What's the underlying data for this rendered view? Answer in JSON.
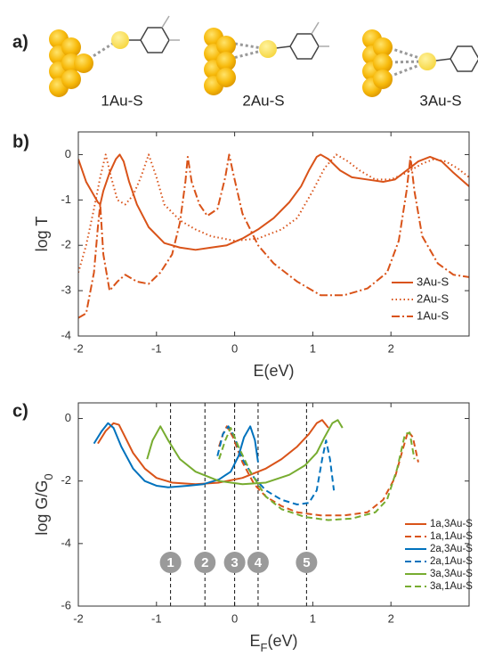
{
  "panel_a": {
    "label": "a)",
    "structures": [
      "1Au-S",
      "2Au-S",
      "3Au-S"
    ]
  },
  "chart_data": [
    {
      "type": "line",
      "panel_label": "b)",
      "xlabel": "E(eV)",
      "ylabel": "log T",
      "xlim": [
        -2,
        3
      ],
      "ylim": [
        -4,
        0.5
      ],
      "xticks": [
        -2,
        -1,
        0,
        1,
        2
      ],
      "yticks": [
        -4,
        -3,
        -2,
        -1,
        0
      ],
      "legend": "lower right",
      "series": [
        {
          "name": "3Au-S",
          "color": "#d95319",
          "style": "solid",
          "x": [
            -2,
            -1.9,
            -1.8,
            -1.75,
            -1.72,
            -1.68,
            -1.6,
            -1.52,
            -1.47,
            -1.42,
            -1.35,
            -1.25,
            -1.1,
            -0.9,
            -0.7,
            -0.5,
            -0.3,
            -0.1,
            0.1,
            0.3,
            0.5,
            0.7,
            0.85,
            0.95,
            1.05,
            1.1,
            1.2,
            1.35,
            1.5,
            1.7,
            1.9,
            2.05,
            2.2,
            2.35,
            2.5,
            2.65,
            2.8,
            3
          ],
          "values": [
            -0.1,
            -0.6,
            -0.9,
            -1.05,
            -1.1,
            -0.8,
            -0.4,
            -0.1,
            0,
            -0.15,
            -0.6,
            -1.1,
            -1.6,
            -1.95,
            -2.05,
            -2.1,
            -2.05,
            -2.0,
            -1.85,
            -1.65,
            -1.4,
            -1.05,
            -0.7,
            -0.35,
            -0.05,
            0,
            -0.1,
            -0.35,
            -0.5,
            -0.55,
            -0.6,
            -0.55,
            -0.35,
            -0.15,
            -0.05,
            -0.15,
            -0.4,
            -0.7
          ]
        },
        {
          "name": "2Au-S",
          "color": "#d95319",
          "style": "dotted",
          "x": [
            -2,
            -1.9,
            -1.8,
            -1.72,
            -1.65,
            -1.58,
            -1.5,
            -1.4,
            -1.3,
            -1.2,
            -1.1,
            -1.0,
            -0.9,
            -0.7,
            -0.5,
            -0.3,
            0,
            0.3,
            0.6,
            0.8,
            1.0,
            1.15,
            1.3,
            1.45,
            1.6,
            1.8,
            2.0,
            2.2,
            2.4,
            2.55,
            2.7,
            2.85,
            3
          ],
          "values": [
            -2.6,
            -2.0,
            -1.2,
            -0.5,
            0,
            -0.5,
            -1.0,
            -1.1,
            -0.9,
            -0.5,
            0,
            -0.5,
            -1.1,
            -1.45,
            -1.65,
            -1.8,
            -1.9,
            -1.85,
            -1.65,
            -1.4,
            -0.8,
            -0.3,
            0,
            -0.15,
            -0.35,
            -0.55,
            -0.55,
            -0.4,
            -0.2,
            -0.1,
            -0.15,
            -0.3,
            -0.5
          ]
        },
        {
          "name": "1Au-S",
          "color": "#d95319",
          "style": "dashdot",
          "x": [
            -2,
            -1.9,
            -1.8,
            -1.75,
            -1.72,
            -1.68,
            -1.6,
            -1.5,
            -1.4,
            -1.25,
            -1.1,
            -0.95,
            -0.8,
            -0.7,
            -0.63,
            -0.6,
            -0.55,
            -0.45,
            -0.35,
            -0.22,
            -0.12,
            -0.07,
            -0.02,
            0.1,
            0.3,
            0.5,
            0.8,
            1.1,
            1.4,
            1.7,
            1.95,
            2.1,
            2.2,
            2.25,
            2.3,
            2.4,
            2.6,
            2.8,
            3
          ],
          "values": [
            -3.6,
            -3.5,
            -2.6,
            -1.6,
            -1.1,
            -2.2,
            -3.0,
            -2.8,
            -2.65,
            -2.8,
            -2.85,
            -2.6,
            -2.2,
            -1.5,
            -0.6,
            -0.05,
            -0.6,
            -1.1,
            -1.35,
            -1.2,
            -0.5,
            0,
            -0.4,
            -1.3,
            -2.0,
            -2.4,
            -2.8,
            -3.1,
            -3.1,
            -2.95,
            -2.6,
            -1.9,
            -0.8,
            -0.05,
            -0.8,
            -1.8,
            -2.4,
            -2.65,
            -2.7
          ]
        }
      ]
    },
    {
      "type": "line",
      "panel_label": "c)",
      "xlabel": {
        "text": "E",
        "subscript": "F",
        "suffix": "(eV)"
      },
      "ylabel": {
        "text": "log G/G",
        "subscript": "0"
      },
      "xlim": [
        -2,
        3
      ],
      "ylim": [
        -6,
        0.5
      ],
      "xticks": [
        -2,
        -1,
        0,
        1,
        2
      ],
      "yticks": [
        -6,
        -4,
        -2,
        0
      ],
      "legend": "lower right",
      "markers": [
        {
          "x": -0.82,
          "label": "1"
        },
        {
          "x": -0.38,
          "label": "2"
        },
        {
          "x": 0,
          "label": "3"
        },
        {
          "x": 0.3,
          "label": "4"
        },
        {
          "x": 0.92,
          "label": "5"
        }
      ],
      "series": [
        {
          "name": "1a,3Au-S",
          "color": "#d95319",
          "style": "solid",
          "x": [
            -1.75,
            -1.65,
            -1.55,
            -1.48,
            -1.4,
            -1.3,
            -1.15,
            -1.0,
            -0.8,
            -0.5,
            -0.2,
            0.1,
            0.4,
            0.6,
            0.8,
            0.95,
            1.05,
            1.12,
            1.2
          ],
          "values": [
            -0.8,
            -0.4,
            -0.15,
            -0.2,
            -0.6,
            -1.1,
            -1.6,
            -1.9,
            -2.05,
            -2.1,
            -2.05,
            -1.9,
            -1.6,
            -1.3,
            -0.9,
            -0.5,
            -0.15,
            -0.05,
            -0.3
          ]
        },
        {
          "name": "1a,1Au-S",
          "color": "#d95319",
          "style": "dashed",
          "x": [
            -0.2,
            -0.15,
            -0.1,
            -0.02,
            0.1,
            0.25,
            0.4,
            0.6,
            0.8,
            1.1,
            1.4,
            1.7,
            1.9,
            2.05,
            2.15,
            2.22,
            2.28,
            2.35
          ],
          "values": [
            -0.9,
            -0.5,
            -0.25,
            -0.6,
            -1.4,
            -2.1,
            -2.5,
            -2.8,
            -3.0,
            -3.1,
            -3.1,
            -3.0,
            -2.6,
            -1.9,
            -1.0,
            -0.4,
            -0.6,
            -1.4
          ]
        },
        {
          "name": "2a,3Au-S",
          "color": "#0072bd",
          "style": "solid",
          "x": [
            -1.8,
            -1.7,
            -1.62,
            -1.55,
            -1.45,
            -1.3,
            -1.15,
            -1.0,
            -0.85,
            -0.6,
            -0.4,
            -0.2,
            -0.05,
            0.05,
            0.12,
            0.2,
            0.26,
            0.3
          ],
          "values": [
            -0.8,
            -0.4,
            -0.15,
            -0.3,
            -0.9,
            -1.6,
            -2.0,
            -2.15,
            -2.2,
            -2.15,
            -2.1,
            -1.95,
            -1.7,
            -1.2,
            -0.6,
            -0.25,
            -0.7,
            -1.4
          ]
        },
        {
          "name": "2a,1Au-S",
          "color": "#0072bd",
          "style": "dashed",
          "x": [
            -0.22,
            -0.15,
            -0.08,
            0,
            0.1,
            0.25,
            0.4,
            0.6,
            0.8,
            0.95,
            1.05,
            1.12,
            1.17,
            1.22,
            1.27
          ],
          "values": [
            -1.2,
            -0.5,
            -0.25,
            -0.6,
            -1.3,
            -1.9,
            -2.3,
            -2.6,
            -2.75,
            -2.7,
            -2.3,
            -1.3,
            -0.7,
            -1.3,
            -2.3
          ]
        },
        {
          "name": "3a,3Au-S",
          "color": "#77ac30",
          "style": "solid",
          "x": [
            -1.12,
            -1.05,
            -0.95,
            -0.85,
            -0.7,
            -0.5,
            -0.2,
            0.1,
            0.4,
            0.7,
            0.9,
            1.05,
            1.15,
            1.25,
            1.32,
            1.38
          ],
          "values": [
            -1.3,
            -0.7,
            -0.25,
            -0.7,
            -1.3,
            -1.7,
            -2.0,
            -2.1,
            -2.05,
            -1.8,
            -1.5,
            -1.1,
            -0.6,
            -0.15,
            -0.05,
            -0.3
          ]
        },
        {
          "name": "3a,1Au-S",
          "color": "#77ac30",
          "style": "dashed",
          "x": [
            -0.2,
            -0.12,
            -0.05,
            0.05,
            0.2,
            0.4,
            0.6,
            0.9,
            1.2,
            1.5,
            1.8,
            1.95,
            2.08,
            2.18,
            2.24,
            2.3
          ],
          "values": [
            -1.3,
            -0.7,
            -0.3,
            -0.9,
            -1.7,
            -2.5,
            -2.9,
            -3.15,
            -3.25,
            -3.2,
            -3.0,
            -2.6,
            -1.6,
            -0.5,
            -0.45,
            -1.3
          ]
        }
      ]
    }
  ]
}
